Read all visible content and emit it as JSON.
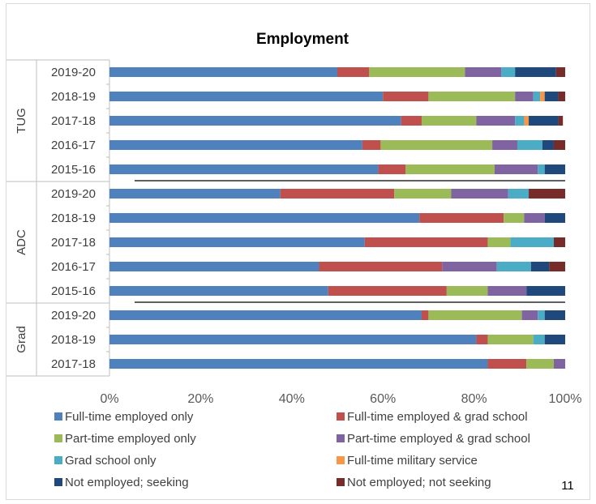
{
  "chart_data": {
    "type": "bar",
    "orientation": "horizontal",
    "stacked": true,
    "percent_stacked": true,
    "title": "Employment",
    "page_number": "11",
    "xlim": [
      0,
      100
    ],
    "x_ticks": [
      "0%",
      "20%",
      "40%",
      "60%",
      "80%",
      "100%"
    ],
    "grid": false,
    "legend_position": "bottom",
    "groups": [
      {
        "name": "TUG",
        "categories": [
          "2019-20",
          "2018-19",
          "2017-18",
          "2016-17",
          "2015-16"
        ]
      },
      {
        "name": "ADC",
        "categories": [
          "2019-20",
          "2018-19",
          "2017-18",
          "2016-17",
          "2015-16"
        ]
      },
      {
        "name": "Grad",
        "categories": [
          "2019-20",
          "2018-19",
          "2017-18"
        ]
      }
    ],
    "series": [
      {
        "name": "Full-time employed only",
        "color": "#4f81bd",
        "values": [
          50,
          60,
          64,
          55.5,
          59,
          37.5,
          68,
          56,
          46,
          48,
          68.5,
          80.5,
          83
        ]
      },
      {
        "name": "Full-time employed & grad school",
        "color": "#c0504d",
        "values": [
          7,
          10,
          4.5,
          4,
          6,
          25,
          18.5,
          27,
          27,
          26,
          1.5,
          2.5,
          8.5
        ]
      },
      {
        "name": "Part-time employed only",
        "color": "#9bbb59",
        "values": [
          21,
          19,
          12,
          24.5,
          19.5,
          12.5,
          4.5,
          5,
          0,
          9,
          20.5,
          10,
          6
        ]
      },
      {
        "name": "Part-time employed & grad school",
        "color": "#8064a2",
        "values": [
          8,
          4,
          8.5,
          5.5,
          9.5,
          12.5,
          4.5,
          0,
          12,
          8.5,
          3.5,
          0,
          2.5
        ]
      },
      {
        "name": "Grad school only",
        "color": "#4bacc6",
        "values": [
          3,
          1.5,
          2,
          5.5,
          1.5,
          4.5,
          0,
          9.5,
          7.5,
          0,
          1.5,
          2.5,
          0
        ]
      },
      {
        "name": "Full-time military service",
        "color": "#f79646",
        "values": [
          0,
          1,
          1,
          0,
          0,
          0,
          0,
          0,
          0,
          0,
          0,
          0,
          0
        ]
      },
      {
        "name": "Not employed; seeking",
        "color": "#1f497d",
        "values": [
          9,
          3,
          6.5,
          2.5,
          4.5,
          0,
          4.5,
          0,
          4,
          8.5,
          4.5,
          4.5,
          0
        ]
      },
      {
        "name": "Not employed; not seeking",
        "color": "#772c2a",
        "values": [
          2,
          1.5,
          1,
          2.5,
          0,
          8,
          0,
          2.5,
          3.5,
          0,
          0,
          0,
          0
        ]
      }
    ]
  }
}
